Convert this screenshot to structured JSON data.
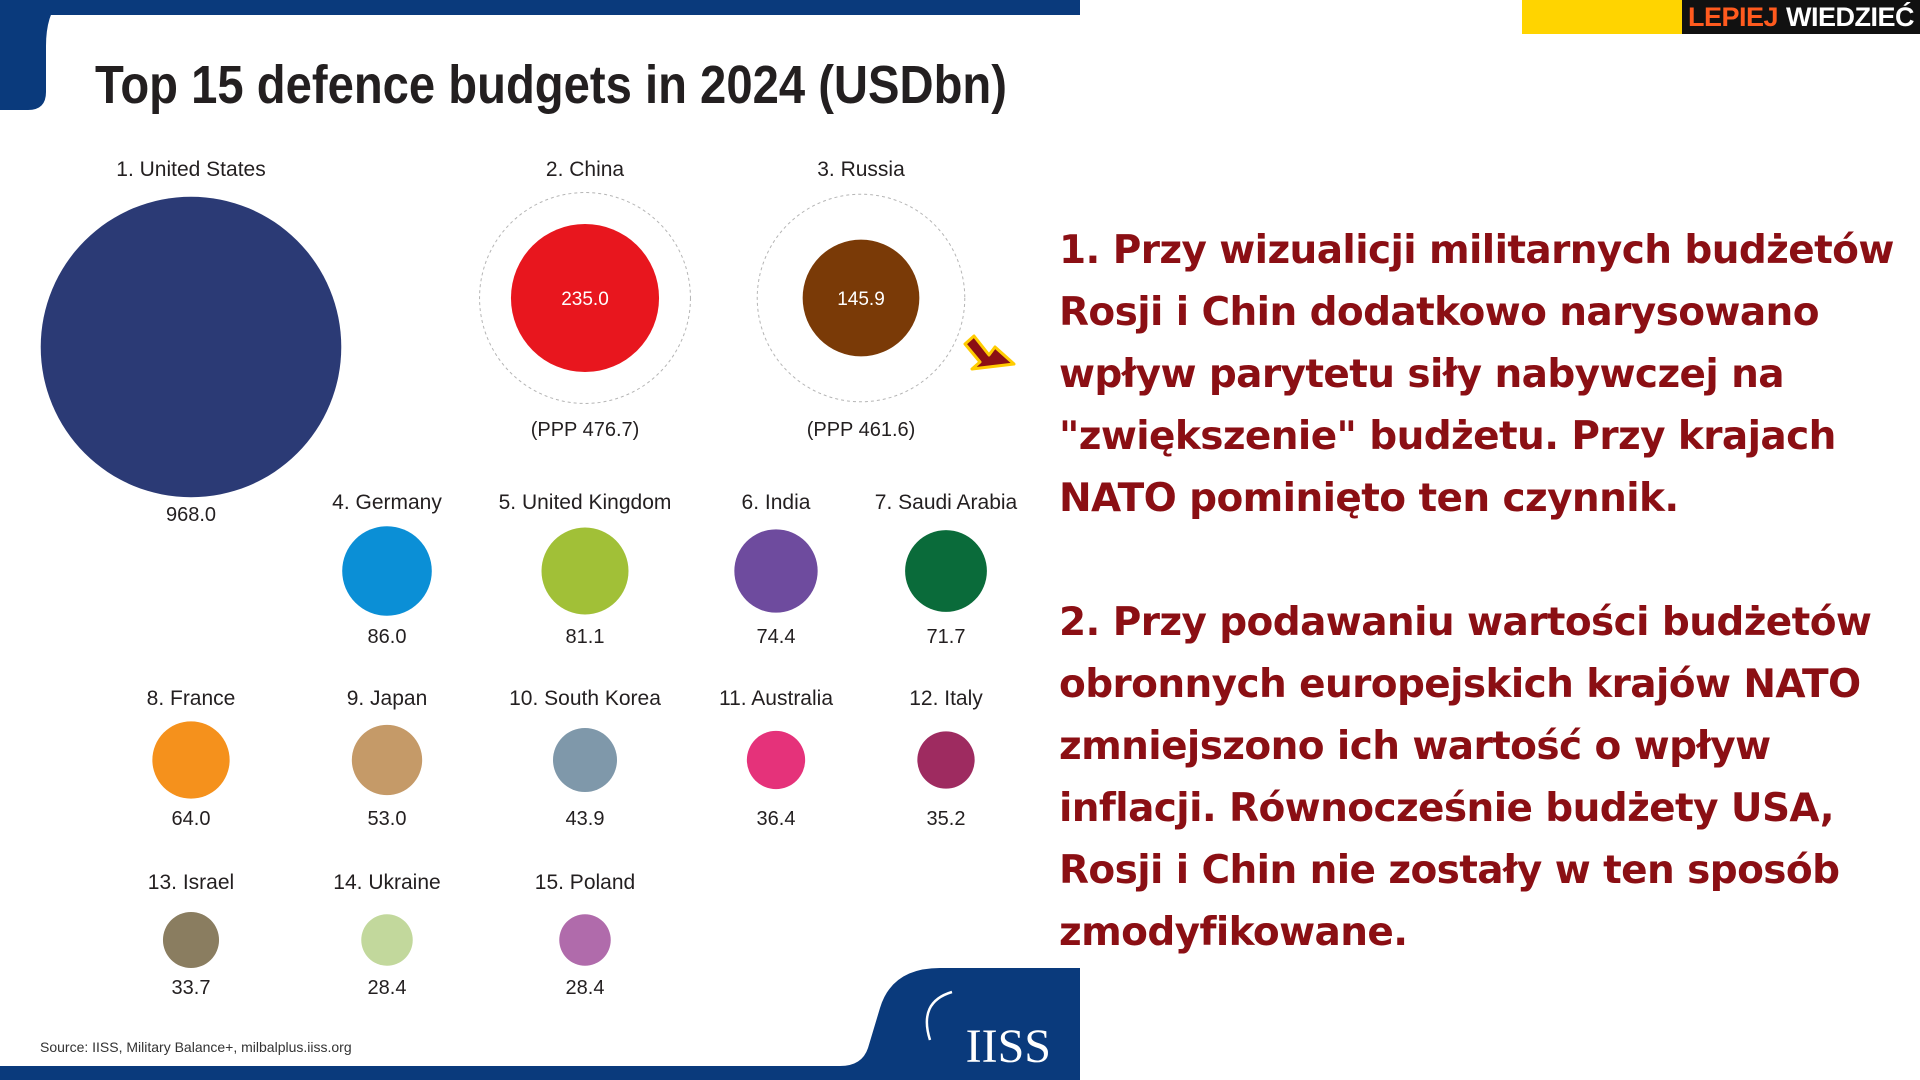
{
  "chart_data": {
    "type": "bubble",
    "title": "Top 15 defence budgets in 2024 (USDbn)",
    "source": "Source: IISS, Military Balance+, milbalplus.iiss.org",
    "logo_text": "IISS",
    "countries": [
      {
        "label": "1. United States",
        "value_label": "968.0",
        "value": 968.0,
        "color": "#2b3a75"
      },
      {
        "label": "2. China",
        "value_label": "235.0",
        "value": 235.0,
        "ppp_value": 476.7,
        "ppp_label": "(PPP 476.7)",
        "color": "#e8161e"
      },
      {
        "label": "3. Russia",
        "value_label": "145.9",
        "value": 145.9,
        "ppp_value": 461.6,
        "ppp_label": "(PPP 461.6)",
        "color": "#7a3a07"
      },
      {
        "label": "4. Germany",
        "value_label": "86.0",
        "value": 86.0,
        "color": "#0b8fd6"
      },
      {
        "label": "5. United Kingdom",
        "value_label": "81.1",
        "value": 81.1,
        "color": "#a1c037"
      },
      {
        "label": "6. India",
        "value_label": "74.4",
        "value": 74.4,
        "color": "#6e4b9e"
      },
      {
        "label": "7. Saudi Arabia",
        "value_label": "71.7",
        "value": 71.7,
        "color": "#0a6b3a"
      },
      {
        "label": "8. France",
        "value_label": "64.0",
        "value": 64.0,
        "color": "#f5911c"
      },
      {
        "label": "9. Japan",
        "value_label": "53.0",
        "value": 53.0,
        "color": "#c59a68"
      },
      {
        "label": "10. South Korea",
        "value_label": "43.9",
        "value": 43.9,
        "color": "#7f98aa"
      },
      {
        "label": "11. Australia",
        "value_label": "36.4",
        "value": 36.4,
        "color": "#e5327a"
      },
      {
        "label": "12. Italy",
        "value_label": "35.2",
        "value": 35.2,
        "color": "#9e2b60"
      },
      {
        "label": "13. Israel",
        "value_label": "33.7",
        "value": 33.7,
        "color": "#8a7d60"
      },
      {
        "label": "14. Ukraine",
        "value_label": "28.4",
        "value": 28.4,
        "color": "#c2d89c"
      },
      {
        "label": "15. Poland",
        "value_label": "28.4",
        "value": 28.4,
        "color": "#b06bab"
      }
    ]
  },
  "badge": {
    "word1": "LEPIEJ",
    "word2": "WIEDZIEĆ"
  },
  "commentary": {
    "point1": "1. Przy wizualicji militarnych budżetów Rosji i Chin dodatkowo narysowano wpływ parytetu siły nabywczej na \"zwiększenie\" budżetu. Przy krajach NATO pominięto ten czynnik.",
    "point2": "2. Przy podawaniu wartości budżetów obronnych europejskich krajów NATO zmniejszono ich wartość o wpływ inflacji. Równocześnie budżety USA, Rosji i Chin nie zostały w ten sposób zmodyfikowane."
  },
  "colors": {
    "frame": "#0a3a7c",
    "commentary_text": "#8b0f14",
    "arrow_fill": "#8b0f14",
    "arrow_outline": "#ffcc00"
  }
}
